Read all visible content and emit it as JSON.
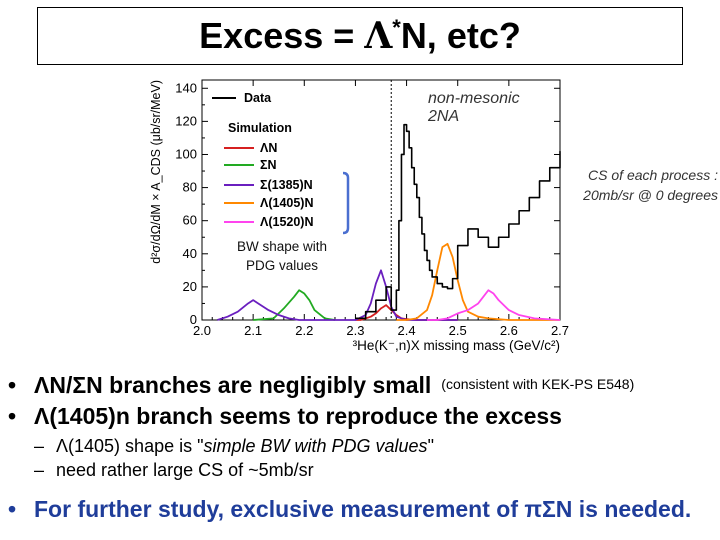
{
  "slide": {
    "title": {
      "prefix": "Excess = ",
      "greek": "Λ",
      "sup": "*",
      "suffix": "N, etc?"
    },
    "cs_note_line1": "CS of each process :",
    "cs_note_line2": "20mb/sr @ 0 degrees",
    "bw_note_line1": "BW shape with",
    "bw_note_line2": "PDG values",
    "bullets": {
      "b1_marker": "•",
      "b1_text": "ΛN/ΣN branches are negligibly small",
      "b1_small": "(consistent with KEK-PS E548)",
      "b2_marker": "•",
      "b2_text": "Λ(1405)n branch seems to reproduce the excess",
      "s1_marker": "–",
      "s1_text_a": "Λ(1405) shape is \"",
      "s1_text_i": "simple BW with PDG values",
      "s1_text_b": "\"",
      "s2_marker": "–",
      "s2_text": "need rather large CS of ~5mb/sr",
      "b3_marker": "•",
      "b3_text": "For further study, exclusive measurement of πΣN is needed."
    },
    "colors": {
      "accent_blue": "#1f3d9a",
      "bracket_blue": "#4a6fd0"
    }
  },
  "chart_data": {
    "type": "line",
    "title": "",
    "xlabel": "³He(K⁻,n)X missing mass (GeV/c²)",
    "ylabel": "d²σ/dΩ/dM × A_CDS (μb/sr/MeV)",
    "xlim": [
      2.0,
      2.7
    ],
    "ylim": [
      0,
      145
    ],
    "xticks": [
      "2.0",
      "2.1",
      "2.2",
      "2.3",
      "2.4",
      "2.5",
      "2.6",
      "2.7"
    ],
    "yticks": [
      "0",
      "20",
      "40",
      "60",
      "80",
      "100",
      "120",
      "140"
    ],
    "threshold_line_x": 2.37,
    "annotation": [
      "non-mesonic",
      "2NA"
    ],
    "legend": {
      "position": "top-left",
      "data_label": "Data",
      "sim_header": "Simulation"
    },
    "series": [
      {
        "name": "Data",
        "color": "#000000",
        "step": true,
        "x": [
          2.3,
          2.32,
          2.34,
          2.36,
          2.37,
          2.38,
          2.385,
          2.39,
          2.395,
          2.4,
          2.405,
          2.41,
          2.415,
          2.42,
          2.425,
          2.43,
          2.435,
          2.44,
          2.445,
          2.45,
          2.46,
          2.47,
          2.48,
          2.49,
          2.5,
          2.52,
          2.54,
          2.56,
          2.58,
          2.6,
          2.62,
          2.64,
          2.66,
          2.68,
          2.7
        ],
        "y": [
          1,
          5,
          12,
          20,
          6,
          18,
          60,
          100,
          118,
          114,
          104,
          92,
          82,
          74,
          62,
          52,
          42,
          36,
          30,
          26,
          22,
          20,
          19,
          25,
          45,
          55,
          50,
          44,
          50,
          58,
          66,
          74,
          84,
          92,
          102
        ]
      },
      {
        "name": "ΛN",
        "color": "#d62020",
        "x": [
          2.3,
          2.31,
          2.32,
          2.33,
          2.34,
          2.35,
          2.36,
          2.37,
          2.38,
          2.39,
          2.4,
          2.42,
          2.44,
          2.46,
          2.5
        ],
        "y": [
          0,
          0,
          1,
          2,
          4,
          7,
          9,
          6,
          3,
          1,
          0.5,
          0,
          0,
          0,
          0
        ]
      },
      {
        "name": "ΣN",
        "color": "#22aa22",
        "x": [
          2.1,
          2.14,
          2.16,
          2.18,
          2.19,
          2.2,
          2.21,
          2.22,
          2.24,
          2.26
        ],
        "y": [
          0,
          1,
          7,
          14,
          18,
          16,
          12,
          6,
          1,
          0
        ]
      },
      {
        "name": "Σ(1385)N",
        "color": "#6a1fbf",
        "x": [
          2.03,
          2.05,
          2.07,
          2.09,
          2.1,
          2.11,
          2.13,
          2.15,
          2.17,
          2.19,
          2.25,
          2.3,
          2.32,
          2.33,
          2.34,
          2.35,
          2.36,
          2.37,
          2.38,
          2.4,
          2.45,
          2.5
        ],
        "y": [
          0,
          2,
          5,
          10,
          12,
          10,
          6,
          3,
          1,
          0,
          0,
          0,
          3,
          10,
          22,
          30,
          20,
          8,
          2,
          0,
          0,
          0
        ]
      },
      {
        "name": "Λ(1405)N",
        "color": "#ff8800",
        "x": [
          2.38,
          2.4,
          2.42,
          2.44,
          2.45,
          2.46,
          2.47,
          2.48,
          2.49,
          2.5,
          2.51,
          2.52,
          2.54,
          2.56,
          2.6,
          2.65,
          2.7
        ],
        "y": [
          0,
          0,
          1,
          6,
          15,
          30,
          44,
          46,
          38,
          24,
          12,
          5,
          2,
          1,
          0,
          0,
          0
        ]
      },
      {
        "name": "Λ(1520)N",
        "color": "#ff44ee",
        "x": [
          2.44,
          2.46,
          2.48,
          2.5,
          2.52,
          2.54,
          2.55,
          2.56,
          2.57,
          2.58,
          2.59,
          2.6,
          2.62,
          2.65,
          2.7
        ],
        "y": [
          0,
          0,
          1,
          4,
          6,
          10,
          14,
          18,
          16,
          12,
          9,
          6,
          3,
          1,
          0
        ]
      }
    ]
  }
}
